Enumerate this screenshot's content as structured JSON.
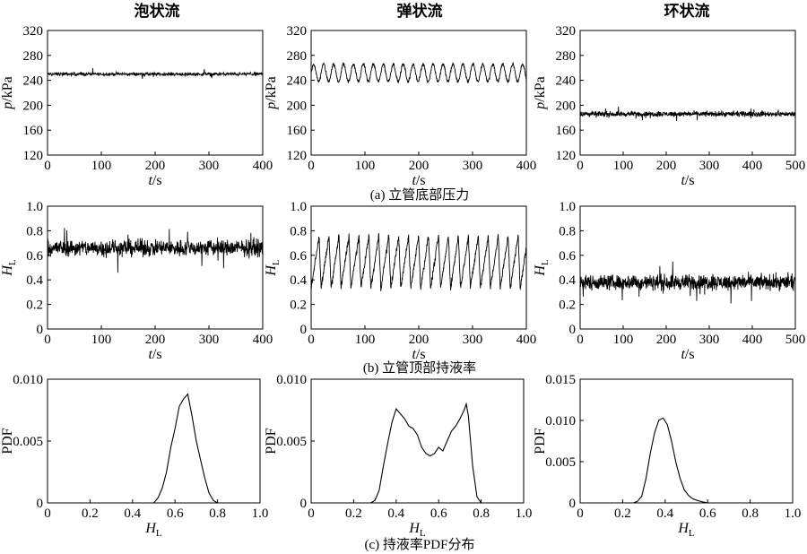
{
  "titles": {
    "col1": "泡状流",
    "col2": "弹状流",
    "col3": "环状流"
  },
  "captions": {
    "a": "(a) 立管底部压力",
    "b": "(b) 立管顶部持液率",
    "c": "(c) 持液率PDF分布"
  },
  "axis_labels": {
    "pressure_y_var": "p",
    "pressure_y_unit": "/kPa",
    "time_var": "t",
    "time_unit": "/s",
    "holdup_var": "H",
    "holdup_sub": "L",
    "pdf": "PDF"
  },
  "colors": {
    "line": "#000000",
    "frame": "#000000",
    "background": "#ffffff"
  },
  "chart_data": [
    {
      "id": "a1",
      "type": "line",
      "title": "泡状流",
      "xlabel": "t/s",
      "ylabel": "p/kPa",
      "xlim": [
        0,
        400
      ],
      "ylim": [
        120,
        320
      ],
      "xticks": [
        "0",
        "100",
        "200",
        "300",
        "400"
      ],
      "yticks": [
        "120",
        "160",
        "200",
        "240",
        "280",
        "320"
      ],
      "signal": {
        "kind": "noise",
        "mean": 250,
        "noise_amplitude": 4,
        "samples": 700
      }
    },
    {
      "id": "a2",
      "type": "line",
      "title": "弹状流",
      "xlabel": "t/s",
      "ylabel": "p/kPa",
      "xlim": [
        0,
        400
      ],
      "ylim": [
        120,
        320
      ],
      "xticks": [
        "0",
        "100",
        "200",
        "300",
        "400"
      ],
      "yticks": [
        "120",
        "160",
        "200",
        "240",
        "280",
        "320"
      ],
      "signal": {
        "kind": "periodic",
        "mean": 252,
        "amplitude": 14,
        "period": 18.5,
        "noise_amplitude": 4,
        "samples": 900
      }
    },
    {
      "id": "a3",
      "type": "line",
      "title": "环状流",
      "xlabel": "t/s",
      "ylabel": "p/kPa",
      "xlim": [
        0,
        500
      ],
      "ylim": [
        120,
        320
      ],
      "xticks": [
        "0",
        "100",
        "200",
        "300",
        "400",
        "500"
      ],
      "yticks": [
        "120",
        "160",
        "200",
        "240",
        "280",
        "320"
      ],
      "signal": {
        "kind": "noise",
        "mean": 186,
        "noise_amplitude": 6,
        "samples": 900
      }
    },
    {
      "id": "b1",
      "type": "line",
      "xlabel": "t/s",
      "ylabel": "HL",
      "xlim": [
        0,
        400
      ],
      "ylim": [
        0,
        1.0
      ],
      "xticks": [
        "0",
        "100",
        "200",
        "300",
        "400"
      ],
      "yticks": [
        "0",
        "0.2",
        "0.4",
        "0.6",
        "0.8",
        "1.0"
      ],
      "signal": {
        "kind": "noise",
        "mean": 0.66,
        "noise_amplitude": 0.1,
        "samples": 800
      }
    },
    {
      "id": "b2",
      "type": "line",
      "xlabel": "t/s",
      "ylabel": "HL",
      "xlim": [
        0,
        400
      ],
      "ylim": [
        0,
        1.0
      ],
      "xticks": [
        "0",
        "100",
        "200",
        "300",
        "400"
      ],
      "yticks": [
        "0",
        "0.2",
        "0.4",
        "0.6",
        "0.8",
        "1.0"
      ],
      "signal": {
        "kind": "sawtooth",
        "low": 0.33,
        "high": 0.76,
        "period": 18.5,
        "noise_amplitude": 0.04,
        "samples": 900
      }
    },
    {
      "id": "b3",
      "type": "line",
      "xlabel": "t/s",
      "ylabel": "HL",
      "xlim": [
        0,
        500
      ],
      "ylim": [
        0,
        1.0
      ],
      "xticks": [
        "0",
        "100",
        "200",
        "300",
        "400",
        "500"
      ],
      "yticks": [
        "0",
        "0.2",
        "0.4",
        "0.6",
        "0.8",
        "1.0"
      ],
      "signal": {
        "kind": "noise",
        "mean": 0.38,
        "noise_amplitude": 0.09,
        "samples": 900
      }
    },
    {
      "id": "c1",
      "type": "line",
      "xlabel": "HL",
      "ylabel": "PDF",
      "xlim": [
        0,
        1.0
      ],
      "ylim": [
        0,
        0.01
      ],
      "xticks": [
        "0",
        "0.2",
        "0.4",
        "0.6",
        "0.8",
        "1.0"
      ],
      "yticks": [
        "0",
        "0.005",
        "0.010"
      ],
      "x": [
        0.5,
        0.52,
        0.54,
        0.56,
        0.58,
        0.6,
        0.62,
        0.64,
        0.66,
        0.68,
        0.7,
        0.72,
        0.74,
        0.76,
        0.78,
        0.8
      ],
      "y": [
        0.0,
        0.0004,
        0.0012,
        0.0025,
        0.0045,
        0.006,
        0.0078,
        0.0084,
        0.0088,
        0.007,
        0.005,
        0.0035,
        0.002,
        0.0008,
        0.0002,
        0.0
      ]
    },
    {
      "id": "c2",
      "type": "line",
      "xlabel": "HL",
      "ylabel": "PDF",
      "xlim": [
        0,
        1.0
      ],
      "ylim": [
        0,
        0.01
      ],
      "xticks": [
        "0",
        "0.2",
        "0.4",
        "0.6",
        "0.8",
        "1.0"
      ],
      "yticks": [
        "0",
        "0.005",
        "0.010"
      ],
      "x": [
        0.28,
        0.3,
        0.32,
        0.34,
        0.36,
        0.38,
        0.4,
        0.42,
        0.44,
        0.46,
        0.48,
        0.5,
        0.52,
        0.54,
        0.56,
        0.58,
        0.6,
        0.62,
        0.64,
        0.66,
        0.68,
        0.7,
        0.72,
        0.73,
        0.74,
        0.76,
        0.78,
        0.8
      ],
      "y": [
        0.0,
        0.0002,
        0.001,
        0.003,
        0.0048,
        0.0065,
        0.0076,
        0.0072,
        0.0068,
        0.0062,
        0.006,
        0.0055,
        0.0045,
        0.004,
        0.0038,
        0.004,
        0.0045,
        0.0042,
        0.005,
        0.0058,
        0.0062,
        0.0068,
        0.0075,
        0.008,
        0.007,
        0.003,
        0.0005,
        0.0
      ]
    },
    {
      "id": "c3",
      "type": "line",
      "xlabel": "HL",
      "ylabel": "PDF",
      "xlim": [
        0,
        1.0
      ],
      "ylim": [
        0,
        0.015
      ],
      "xticks": [
        "0",
        "0.2",
        "0.4",
        "0.6",
        "0.8",
        "1.0"
      ],
      "yticks": [
        "0",
        "0.005",
        "0.010",
        "0.015"
      ],
      "x": [
        0.25,
        0.27,
        0.29,
        0.31,
        0.33,
        0.35,
        0.37,
        0.39,
        0.41,
        0.43,
        0.45,
        0.47,
        0.49,
        0.51,
        0.53,
        0.55,
        0.58,
        0.6
      ],
      "y": [
        0.0,
        0.0002,
        0.0008,
        0.003,
        0.006,
        0.0085,
        0.01,
        0.0103,
        0.0095,
        0.0075,
        0.005,
        0.003,
        0.0016,
        0.0009,
        0.0005,
        0.0003,
        0.0001,
        0.0
      ]
    }
  ]
}
